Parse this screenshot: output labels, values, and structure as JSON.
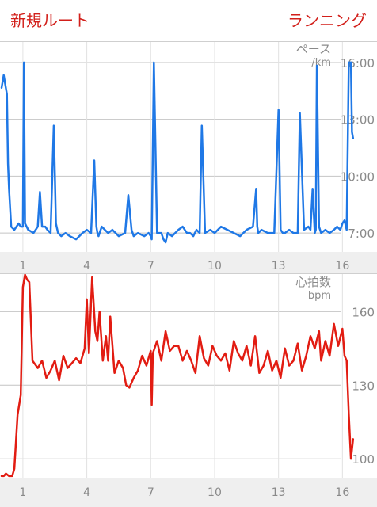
{
  "header": {
    "title": "新規ルート",
    "activity": "ランニング"
  },
  "chart_data": [
    {
      "type": "line",
      "ylabel": "ペース",
      "unit": "/km",
      "ytick_labels": [
        "16:00",
        "13:00",
        "10:00",
        "7:00"
      ],
      "ytick_values": [
        960,
        780,
        600,
        420
      ],
      "xticks": [
        1,
        4,
        7,
        10,
        13,
        16
      ],
      "xlim": [
        0,
        17.4
      ],
      "ylim": [
        360,
        1000
      ],
      "grid": true,
      "color": "#1f78e6",
      "series": [
        {
          "x": [
            0.0,
            0.1,
            0.15,
            0.25,
            0.3,
            0.35,
            0.45,
            0.6,
            0.8,
            0.9,
            1.0,
            1.05,
            1.1,
            1.25,
            1.5,
            1.7,
            1.8,
            1.9,
            2.05,
            2.15,
            2.3,
            2.45,
            2.55,
            2.65,
            2.8,
            3.0,
            3.2,
            3.5,
            3.8,
            4.0,
            4.2,
            4.35,
            4.45,
            4.5,
            4.55,
            4.7,
            5.0,
            5.2,
            5.5,
            5.8,
            5.95,
            6.1,
            6.2,
            6.4,
            6.7,
            6.9,
            7.0,
            7.05,
            7.15,
            7.3,
            7.5,
            7.6,
            7.7,
            7.8,
            8.0,
            8.3,
            8.5,
            8.7,
            8.85,
            9.0,
            9.15,
            9.3,
            9.4,
            9.55,
            9.8,
            10.0,
            10.3,
            10.6,
            10.9,
            11.2,
            11.5,
            11.8,
            11.95,
            12.0,
            12.05,
            12.2,
            12.5,
            12.8,
            13.0,
            13.1,
            13.2,
            13.3,
            13.5,
            13.7,
            13.9,
            14.0,
            14.2,
            14.4,
            14.5,
            14.6,
            14.7,
            14.75,
            14.8,
            14.9,
            15.0,
            15.2,
            15.4,
            15.6,
            15.75,
            15.9,
            16.0,
            16.1,
            16.2,
            16.3,
            16.4,
            16.45,
            16.5
          ],
          "y": [
            880,
            920,
            900,
            860,
            640,
            560,
            440,
            430,
            450,
            440,
            440,
            960,
            450,
            430,
            420,
            440,
            550,
            440,
            440,
            430,
            420,
            760,
            450,
            420,
            410,
            420,
            410,
            400,
            420,
            430,
            420,
            650,
            440,
            420,
            410,
            440,
            420,
            430,
            410,
            420,
            540,
            430,
            410,
            420,
            410,
            420,
            410,
            400,
            960,
            420,
            420,
            400,
            390,
            420,
            410,
            430,
            440,
            420,
            420,
            410,
            430,
            420,
            760,
            420,
            430,
            420,
            440,
            430,
            420,
            410,
            430,
            440,
            560,
            440,
            420,
            430,
            420,
            420,
            810,
            430,
            420,
            420,
            430,
            420,
            420,
            800,
            430,
            440,
            430,
            560,
            420,
            430,
            950,
            440,
            420,
            430,
            420,
            430,
            440,
            430,
            450,
            460,
            430,
            960,
            960,
            740,
            720
          ],
          "name": ""
        }
      ]
    },
    {
      "type": "line",
      "ylabel": "心拍数",
      "unit": "bpm",
      "ytick_labels": [
        "160",
        "130",
        "100"
      ],
      "ytick_values": [
        160,
        130,
        100
      ],
      "xticks": [
        1,
        4,
        7,
        10,
        13,
        16
      ],
      "xlim": [
        0,
        17.4
      ],
      "ylim": [
        92,
        174
      ],
      "grid": true,
      "color": "#e21c12",
      "series": [
        {
          "x": [
            0.0,
            0.1,
            0.2,
            0.35,
            0.5,
            0.6,
            0.75,
            0.9,
            1.0,
            1.1,
            1.2,
            1.3,
            1.45,
            1.7,
            1.9,
            2.1,
            2.3,
            2.5,
            2.7,
            2.9,
            3.1,
            3.3,
            3.5,
            3.7,
            3.9,
            4.0,
            4.1,
            4.25,
            4.4,
            4.5,
            4.6,
            4.75,
            4.9,
            5.0,
            5.1,
            5.3,
            5.5,
            5.7,
            5.85,
            6.0,
            6.2,
            6.4,
            6.6,
            6.8,
            7.0,
            7.05,
            7.1,
            7.3,
            7.5,
            7.7,
            7.9,
            8.1,
            8.3,
            8.5,
            8.7,
            8.9,
            9.1,
            9.3,
            9.5,
            9.7,
            9.9,
            10.1,
            10.3,
            10.5,
            10.7,
            10.9,
            11.1,
            11.3,
            11.5,
            11.7,
            11.9,
            12.1,
            12.3,
            12.5,
            12.7,
            12.9,
            13.1,
            13.3,
            13.5,
            13.7,
            13.9,
            14.1,
            14.3,
            14.5,
            14.7,
            14.9,
            15.0,
            15.2,
            15.4,
            15.6,
            15.8,
            16.0,
            16.1,
            16.2,
            16.3,
            16.4,
            16.5
          ],
          "y": [
            93,
            93,
            94,
            93,
            93,
            96,
            118,
            126,
            170,
            175,
            173,
            172,
            140,
            137,
            140,
            133,
            136,
            140,
            132,
            142,
            137,
            139,
            141,
            139,
            145,
            165,
            143,
            174,
            152,
            148,
            160,
            140,
            150,
            140,
            158,
            135,
            140,
            137,
            130,
            129,
            133,
            136,
            142,
            138,
            144,
            122,
            143,
            148,
            140,
            152,
            144,
            146,
            146,
            140,
            144,
            140,
            135,
            150,
            141,
            138,
            146,
            142,
            140,
            143,
            136,
            148,
            143,
            140,
            146,
            138,
            150,
            135,
            138,
            144,
            136,
            140,
            133,
            145,
            138,
            140,
            147,
            136,
            142,
            150,
            145,
            152,
            140,
            148,
            142,
            155,
            146,
            153,
            142,
            140,
            118,
            100,
            108
          ],
          "name": ""
        }
      ]
    }
  ]
}
